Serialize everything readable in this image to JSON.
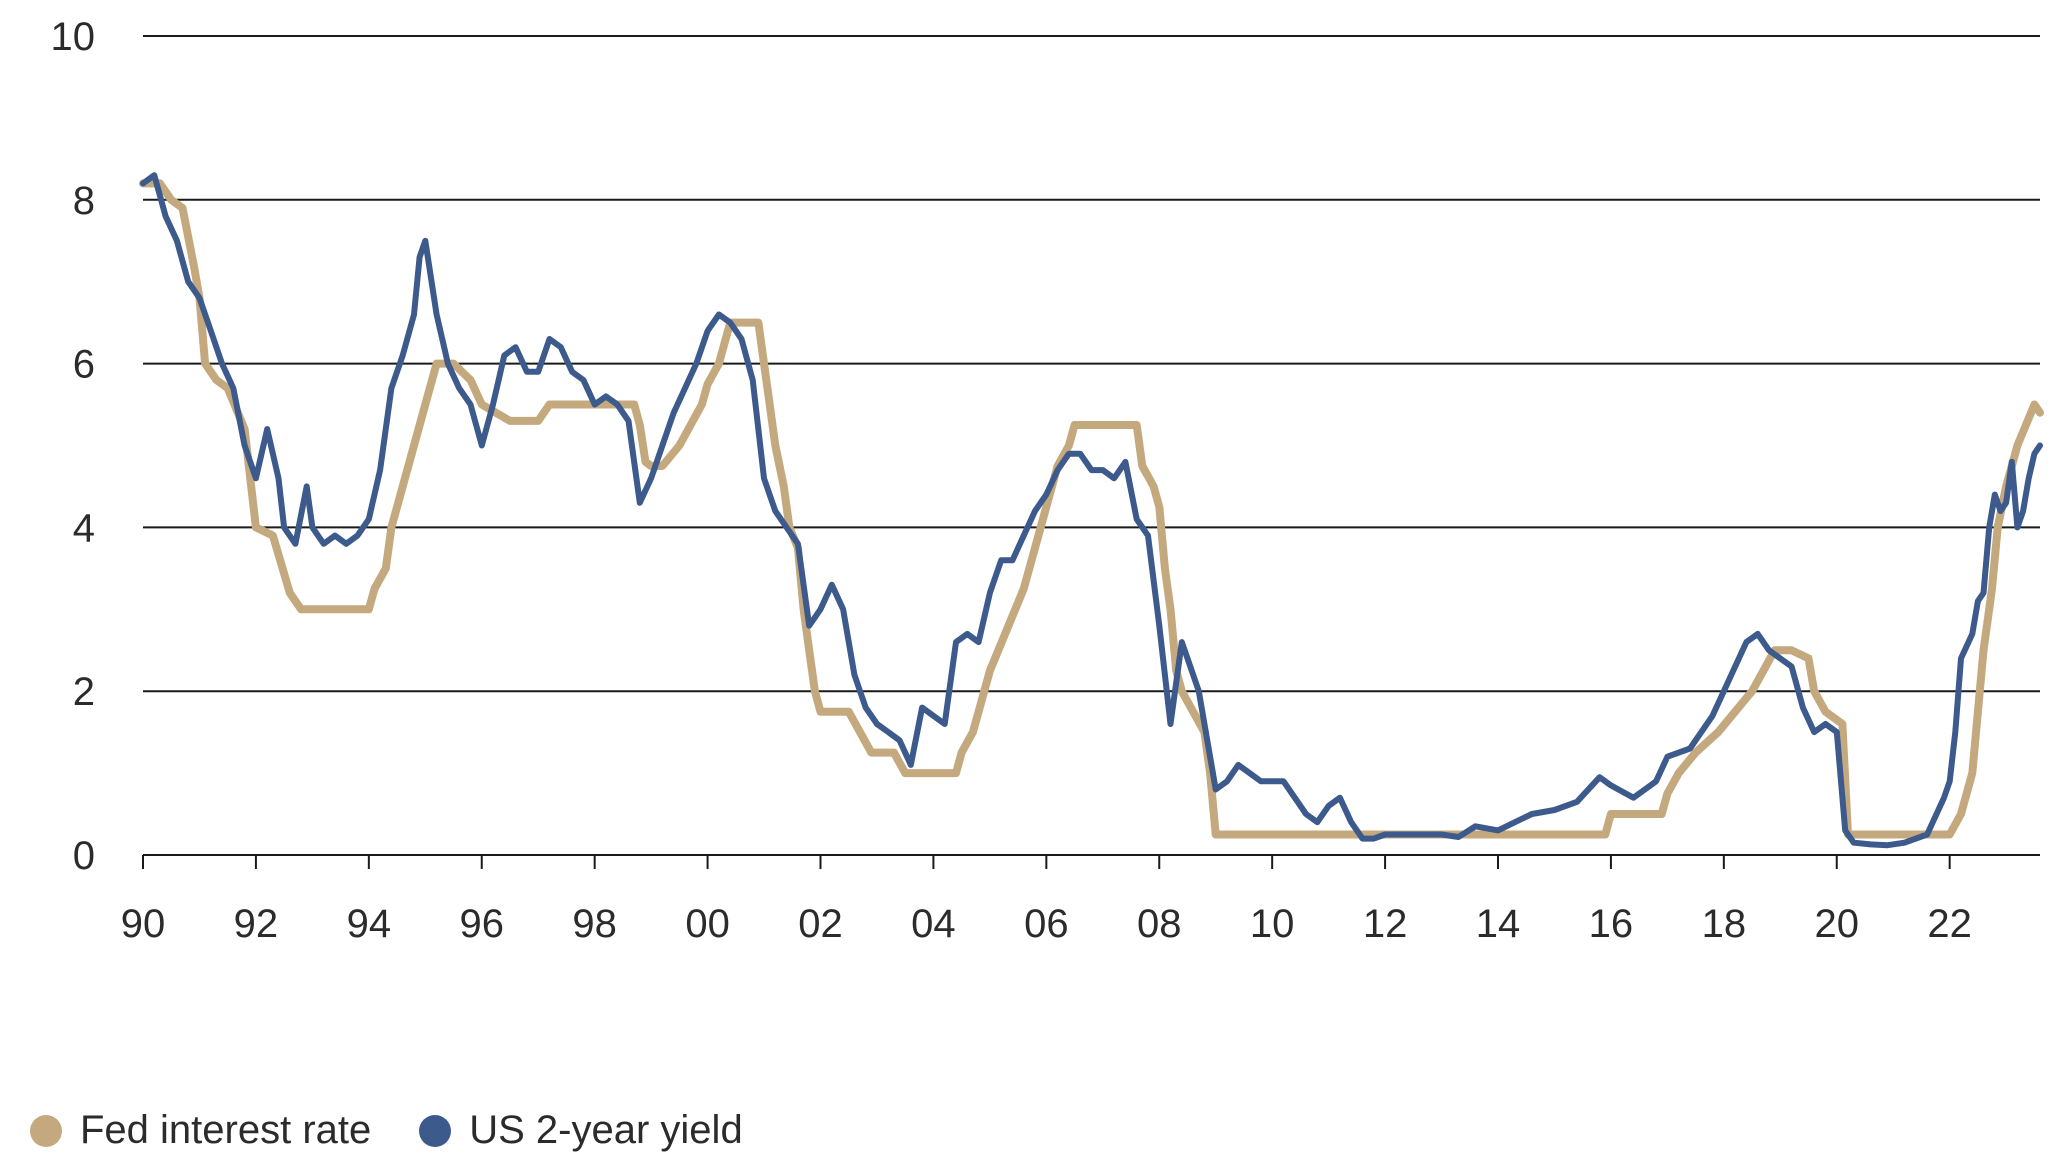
{
  "chart_data": {
    "type": "line",
    "title": "",
    "xlabel": "",
    "ylabel": "",
    "ylim": [
      0,
      10
    ],
    "y_ticks": [
      "0",
      "2",
      "4",
      "6",
      "8",
      "10"
    ],
    "xlim": [
      1990.0,
      2023.6
    ],
    "x_ticks": [
      "90",
      "92",
      "94",
      "96",
      "98",
      "00",
      "02",
      "04",
      "06",
      "08",
      "10",
      "12",
      "14",
      "16",
      "18",
      "20",
      "22"
    ],
    "grid": "horizontal",
    "legend_position": "bottom-left",
    "series": [
      {
        "name": "Fed interest rate",
        "color": "#C5A97E",
        "points": [
          [
            1990.0,
            8.2
          ],
          [
            1990.3,
            8.2
          ],
          [
            1990.5,
            8.0
          ],
          [
            1990.7,
            7.9
          ],
          [
            1990.9,
            7.2
          ],
          [
            1991.0,
            6.8
          ],
          [
            1991.1,
            6.0
          ],
          [
            1991.3,
            5.8
          ],
          [
            1991.5,
            5.7
          ],
          [
            1991.8,
            5.2
          ],
          [
            1992.0,
            4.0
          ],
          [
            1992.3,
            3.9
          ],
          [
            1992.6,
            3.2
          ],
          [
            1992.8,
            3.0
          ],
          [
            1993.0,
            3.0
          ],
          [
            1993.5,
            3.0
          ],
          [
            1994.0,
            3.0
          ],
          [
            1994.1,
            3.25
          ],
          [
            1994.3,
            3.5
          ],
          [
            1994.4,
            4.0
          ],
          [
            1994.6,
            4.5
          ],
          [
            1994.8,
            5.0
          ],
          [
            1995.0,
            5.5
          ],
          [
            1995.2,
            6.0
          ],
          [
            1995.5,
            6.0
          ],
          [
            1995.8,
            5.8
          ],
          [
            1996.0,
            5.5
          ],
          [
            1996.5,
            5.3
          ],
          [
            1997.0,
            5.3
          ],
          [
            1997.2,
            5.5
          ],
          [
            1997.8,
            5.5
          ],
          [
            1998.2,
            5.5
          ],
          [
            1998.7,
            5.5
          ],
          [
            1998.8,
            5.25
          ],
          [
            1998.9,
            4.8
          ],
          [
            1999.0,
            4.75
          ],
          [
            1999.2,
            4.75
          ],
          [
            1999.5,
            5.0
          ],
          [
            1999.7,
            5.25
          ],
          [
            1999.9,
            5.5
          ],
          [
            2000.0,
            5.75
          ],
          [
            2000.2,
            6.0
          ],
          [
            2000.4,
            6.5
          ],
          [
            2000.7,
            6.5
          ],
          [
            2000.9,
            6.5
          ],
          [
            2001.0,
            6.0
          ],
          [
            2001.1,
            5.5
          ],
          [
            2001.2,
            5.0
          ],
          [
            2001.35,
            4.5
          ],
          [
            2001.45,
            4.0
          ],
          [
            2001.6,
            3.75
          ],
          [
            2001.7,
            3.0
          ],
          [
            2001.8,
            2.5
          ],
          [
            2001.9,
            2.0
          ],
          [
            2002.0,
            1.75
          ],
          [
            2002.5,
            1.75
          ],
          [
            2002.9,
            1.25
          ],
          [
            2003.0,
            1.25
          ],
          [
            2003.3,
            1.25
          ],
          [
            2003.5,
            1.0
          ],
          [
            2004.0,
            1.0
          ],
          [
            2004.4,
            1.0
          ],
          [
            2004.5,
            1.25
          ],
          [
            2004.7,
            1.5
          ],
          [
            2004.8,
            1.75
          ],
          [
            2005.0,
            2.25
          ],
          [
            2005.3,
            2.75
          ],
          [
            2005.6,
            3.25
          ],
          [
            2005.8,
            3.75
          ],
          [
            2006.0,
            4.25
          ],
          [
            2006.2,
            4.75
          ],
          [
            2006.4,
            5.0
          ],
          [
            2006.5,
            5.25
          ],
          [
            2007.0,
            5.25
          ],
          [
            2007.6,
            5.25
          ],
          [
            2007.7,
            4.75
          ],
          [
            2007.9,
            4.5
          ],
          [
            2008.0,
            4.25
          ],
          [
            2008.1,
            3.5
          ],
          [
            2008.2,
            3.0
          ],
          [
            2008.3,
            2.25
          ],
          [
            2008.4,
            2.0
          ],
          [
            2008.8,
            1.5
          ],
          [
            2008.9,
            1.0
          ],
          [
            2009.0,
            0.25
          ],
          [
            2010.0,
            0.25
          ],
          [
            2011.0,
            0.25
          ],
          [
            2012.0,
            0.25
          ],
          [
            2013.0,
            0.25
          ],
          [
            2014.0,
            0.25
          ],
          [
            2015.0,
            0.25
          ],
          [
            2015.9,
            0.25
          ],
          [
            2016.0,
            0.5
          ],
          [
            2016.9,
            0.5
          ],
          [
            2017.0,
            0.75
          ],
          [
            2017.2,
            1.0
          ],
          [
            2017.5,
            1.25
          ],
          [
            2017.9,
            1.5
          ],
          [
            2018.2,
            1.75
          ],
          [
            2018.5,
            2.0
          ],
          [
            2018.7,
            2.25
          ],
          [
            2018.9,
            2.5
          ],
          [
            2019.2,
            2.5
          ],
          [
            2019.5,
            2.4
          ],
          [
            2019.6,
            2.0
          ],
          [
            2019.8,
            1.75
          ],
          [
            2020.1,
            1.6
          ],
          [
            2020.2,
            0.25
          ],
          [
            2021.0,
            0.25
          ],
          [
            2021.5,
            0.25
          ],
          [
            2022.0,
            0.25
          ],
          [
            2022.2,
            0.5
          ],
          [
            2022.4,
            1.0
          ],
          [
            2022.5,
            1.75
          ],
          [
            2022.6,
            2.5
          ],
          [
            2022.75,
            3.25
          ],
          [
            2022.85,
            4.0
          ],
          [
            2023.0,
            4.5
          ],
          [
            2023.1,
            4.75
          ],
          [
            2023.2,
            5.0
          ],
          [
            2023.35,
            5.25
          ],
          [
            2023.5,
            5.5
          ],
          [
            2023.6,
            5.4
          ]
        ]
      },
      {
        "name": "US 2-year yield",
        "color": "#3D5A8C",
        "points": [
          [
            1990.0,
            8.2
          ],
          [
            1990.2,
            8.3
          ],
          [
            1990.4,
            7.8
          ],
          [
            1990.6,
            7.5
          ],
          [
            1990.8,
            7.0
          ],
          [
            1991.0,
            6.8
          ],
          [
            1991.2,
            6.4
          ],
          [
            1991.4,
            6.0
          ],
          [
            1991.6,
            5.7
          ],
          [
            1991.8,
            5.0
          ],
          [
            1992.0,
            4.6
          ],
          [
            1992.2,
            5.2
          ],
          [
            1992.4,
            4.6
          ],
          [
            1992.5,
            4.0
          ],
          [
            1992.7,
            3.8
          ],
          [
            1992.9,
            4.5
          ],
          [
            1993.0,
            4.0
          ],
          [
            1993.2,
            3.8
          ],
          [
            1993.4,
            3.9
          ],
          [
            1993.6,
            3.8
          ],
          [
            1993.8,
            3.9
          ],
          [
            1994.0,
            4.1
          ],
          [
            1994.2,
            4.7
          ],
          [
            1994.4,
            5.7
          ],
          [
            1994.6,
            6.1
          ],
          [
            1994.8,
            6.6
          ],
          [
            1994.9,
            7.3
          ],
          [
            1995.0,
            7.5
          ],
          [
            1995.2,
            6.6
          ],
          [
            1995.4,
            6.0
          ],
          [
            1995.6,
            5.7
          ],
          [
            1995.8,
            5.5
          ],
          [
            1996.0,
            5.0
          ],
          [
            1996.2,
            5.5
          ],
          [
            1996.4,
            6.1
          ],
          [
            1996.6,
            6.2
          ],
          [
            1996.8,
            5.9
          ],
          [
            1997.0,
            5.9
          ],
          [
            1997.2,
            6.3
          ],
          [
            1997.4,
            6.2
          ],
          [
            1997.6,
            5.9
          ],
          [
            1997.8,
            5.8
          ],
          [
            1998.0,
            5.5
          ],
          [
            1998.2,
            5.6
          ],
          [
            1998.4,
            5.5
          ],
          [
            1998.6,
            5.3
          ],
          [
            1998.8,
            4.3
          ],
          [
            1999.0,
            4.6
          ],
          [
            1999.2,
            5.0
          ],
          [
            1999.4,
            5.4
          ],
          [
            1999.6,
            5.7
          ],
          [
            1999.8,
            6.0
          ],
          [
            2000.0,
            6.4
          ],
          [
            2000.2,
            6.6
          ],
          [
            2000.4,
            6.5
          ],
          [
            2000.6,
            6.3
          ],
          [
            2000.8,
            5.8
          ],
          [
            2001.0,
            4.6
          ],
          [
            2001.2,
            4.2
          ],
          [
            2001.4,
            4.0
          ],
          [
            2001.6,
            3.8
          ],
          [
            2001.8,
            2.8
          ],
          [
            2002.0,
            3.0
          ],
          [
            2002.2,
            3.3
          ],
          [
            2002.4,
            3.0
          ],
          [
            2002.6,
            2.2
          ],
          [
            2002.8,
            1.8
          ],
          [
            2003.0,
            1.6
          ],
          [
            2003.2,
            1.5
          ],
          [
            2003.4,
            1.4
          ],
          [
            2003.6,
            1.1
          ],
          [
            2003.8,
            1.8
          ],
          [
            2004.0,
            1.7
          ],
          [
            2004.2,
            1.6
          ],
          [
            2004.4,
            2.6
          ],
          [
            2004.6,
            2.7
          ],
          [
            2004.8,
            2.6
          ],
          [
            2005.0,
            3.2
          ],
          [
            2005.2,
            3.6
          ],
          [
            2005.4,
            3.6
          ],
          [
            2005.6,
            3.9
          ],
          [
            2005.8,
            4.2
          ],
          [
            2006.0,
            4.4
          ],
          [
            2006.2,
            4.7
          ],
          [
            2006.4,
            4.9
          ],
          [
            2006.6,
            4.9
          ],
          [
            2006.8,
            4.7
          ],
          [
            2007.0,
            4.7
          ],
          [
            2007.2,
            4.6
          ],
          [
            2007.4,
            4.8
          ],
          [
            2007.6,
            4.1
          ],
          [
            2007.8,
            3.9
          ],
          [
            2008.0,
            2.8
          ],
          [
            2008.2,
            1.6
          ],
          [
            2008.4,
            2.6
          ],
          [
            2008.5,
            2.4
          ],
          [
            2008.7,
            2.0
          ],
          [
            2008.9,
            1.2
          ],
          [
            2009.0,
            0.8
          ],
          [
            2009.2,
            0.9
          ],
          [
            2009.4,
            1.1
          ],
          [
            2009.6,
            1.0
          ],
          [
            2009.8,
            0.9
          ],
          [
            2010.0,
            0.9
          ],
          [
            2010.2,
            0.9
          ],
          [
            2010.4,
            0.7
          ],
          [
            2010.6,
            0.5
          ],
          [
            2010.8,
            0.4
          ],
          [
            2011.0,
            0.6
          ],
          [
            2011.2,
            0.7
          ],
          [
            2011.4,
            0.4
          ],
          [
            2011.6,
            0.2
          ],
          [
            2011.8,
            0.2
          ],
          [
            2012.0,
            0.25
          ],
          [
            2012.5,
            0.25
          ],
          [
            2013.0,
            0.25
          ],
          [
            2013.3,
            0.22
          ],
          [
            2013.6,
            0.35
          ],
          [
            2014.0,
            0.3
          ],
          [
            2014.3,
            0.4
          ],
          [
            2014.6,
            0.5
          ],
          [
            2015.0,
            0.55
          ],
          [
            2015.4,
            0.65
          ],
          [
            2015.8,
            0.95
          ],
          [
            2016.0,
            0.85
          ],
          [
            2016.4,
            0.7
          ],
          [
            2016.8,
            0.9
          ],
          [
            2017.0,
            1.2
          ],
          [
            2017.4,
            1.3
          ],
          [
            2017.8,
            1.7
          ],
          [
            2018.0,
            2.0
          ],
          [
            2018.2,
            2.3
          ],
          [
            2018.4,
            2.6
          ],
          [
            2018.6,
            2.7
          ],
          [
            2018.8,
            2.5
          ],
          [
            2019.0,
            2.4
          ],
          [
            2019.2,
            2.3
          ],
          [
            2019.4,
            1.8
          ],
          [
            2019.6,
            1.5
          ],
          [
            2019.8,
            1.6
          ],
          [
            2020.0,
            1.5
          ],
          [
            2020.15,
            0.3
          ],
          [
            2020.3,
            0.15
          ],
          [
            2020.6,
            0.13
          ],
          [
            2020.9,
            0.12
          ],
          [
            2021.2,
            0.15
          ],
          [
            2021.6,
            0.25
          ],
          [
            2021.9,
            0.7
          ],
          [
            2022.0,
            0.9
          ],
          [
            2022.1,
            1.5
          ],
          [
            2022.2,
            2.4
          ],
          [
            2022.4,
            2.7
          ],
          [
            2022.5,
            3.1
          ],
          [
            2022.6,
            3.2
          ],
          [
            2022.7,
            4.0
          ],
          [
            2022.8,
            4.4
          ],
          [
            2022.9,
            4.2
          ],
          [
            2023.0,
            4.3
          ],
          [
            2023.1,
            4.8
          ],
          [
            2023.2,
            4.0
          ],
          [
            2023.3,
            4.2
          ],
          [
            2023.4,
            4.6
          ],
          [
            2023.5,
            4.9
          ],
          [
            2023.6,
            5.0
          ]
        ]
      }
    ]
  }
}
